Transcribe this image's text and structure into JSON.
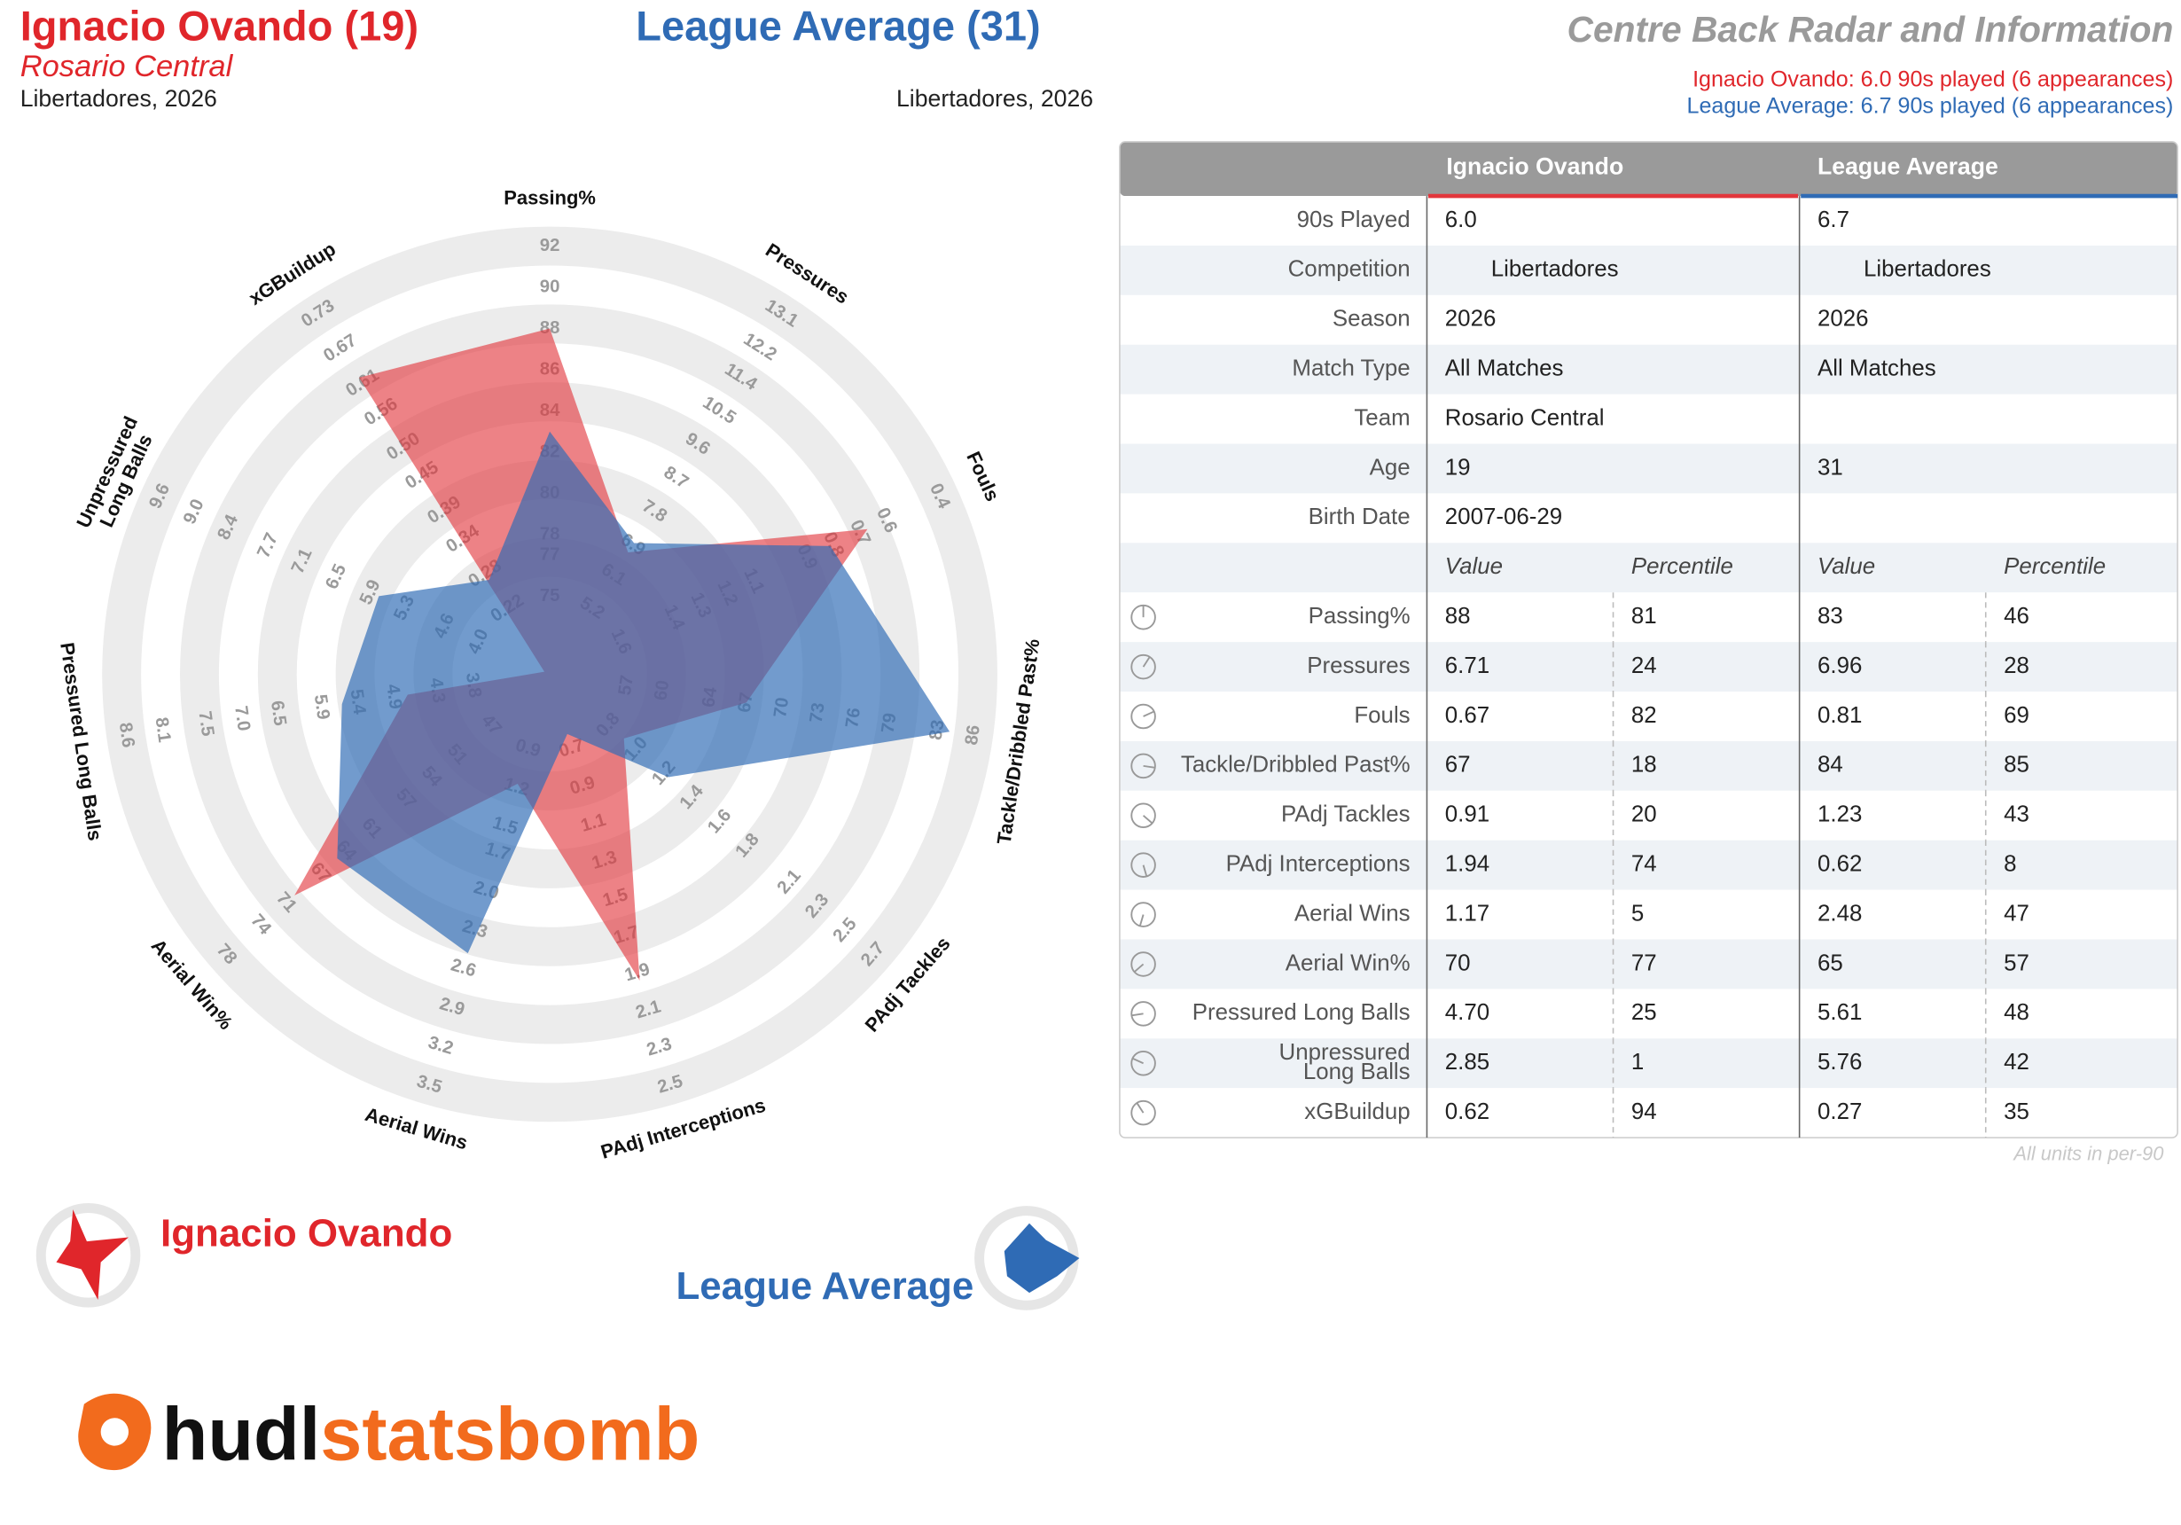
{
  "header": {
    "player_title": "Ignacio Ovando (19)",
    "team": "Rosario Central",
    "player_competition": "Libertadores, 2026",
    "league_title": "League Average (31)",
    "league_competition": "Libertadores, 2026",
    "chart_title": "Centre Back Radar and Information",
    "player_summary": "Ignacio Ovando: 6.0 90s played (6 appearances)",
    "league_summary": "League Average: 6.7 90s played (6 appearances)"
  },
  "chart_data": {
    "type": "radar",
    "axes": [
      {
        "name": "Passing%",
        "lim": [
          75,
          92
        ],
        "ticks": [
          75,
          77,
          78,
          80,
          82,
          84,
          86,
          88,
          90,
          92
        ]
      },
      {
        "name": "Pressures",
        "lim": [
          5.2,
          13.1
        ],
        "ticks": [
          5.2,
          6.1,
          6.9,
          7.8,
          8.7,
          9.6,
          10.5,
          11.4,
          12.2,
          13.1
        ]
      },
      {
        "name": "Fouls",
        "lim": [
          1.6,
          0.4
        ],
        "ticks": [
          1.6,
          1.4,
          1.3,
          1.2,
          1.1,
          0.9,
          0.8,
          0.7,
          0.6,
          0.4
        ]
      },
      {
        "name": "Tackle/Dribbled Past%",
        "lim": [
          57,
          86
        ],
        "ticks": [
          57,
          60,
          64,
          67,
          70,
          73,
          76,
          79,
          83,
          86
        ]
      },
      {
        "name": "PAdj Tackles",
        "lim": [
          0.8,
          2.7
        ],
        "ticks": [
          0.8,
          {
            "value": 1,
            "label": "1.0"
          },
          1.2,
          1.4,
          1.6,
          1.8,
          2.1,
          2.3,
          2.5,
          2.7
        ]
      },
      {
        "name": "PAdj Interceptions",
        "lim": [
          0.7,
          2.5
        ],
        "ticks": [
          0.7,
          0.9,
          1.1,
          1.3,
          1.5,
          1.7,
          1.9,
          2.1,
          2.3,
          2.5
        ]
      },
      {
        "name": "Aerial Wins",
        "lim": [
          0.9,
          3.5
        ],
        "ticks": [
          0.9,
          1.2,
          1.5,
          1.7,
          {
            "value": 2,
            "label": "2.0"
          },
          2.3,
          2.6,
          2.9,
          3.2,
          3.5
        ]
      },
      {
        "name": "Aerial Win%",
        "lim": [
          47,
          78
        ],
        "ticks": [
          47,
          51,
          54,
          57,
          61,
          64,
          67,
          71,
          74,
          78
        ]
      },
      {
        "name": "Pressured Long Balls",
        "lim": [
          3.8,
          8.6
        ],
        "ticks": [
          3.8,
          4.3,
          4.9,
          5.4,
          5.9,
          6.5,
          {
            "value": 7,
            "label": "7.0"
          },
          7.5,
          8.1,
          8.6
        ]
      },
      {
        "name": [
          "Unpressured",
          "Long Balls"
        ],
        "lim": [
          4,
          9.6
        ],
        "ticks": [
          {
            "value": 4,
            "label": "4.0"
          },
          4.6,
          5.3,
          5.9,
          6.5,
          7.1,
          7.7,
          8.4,
          {
            "value": 9,
            "label": "9.0"
          },
          9.6
        ]
      },
      {
        "name": "xGBuildup",
        "lim": [
          0.22,
          0.73
        ],
        "ticks": [
          0.22,
          0.28,
          0.34,
          0.39,
          0.45,
          {
            "value": 0.5,
            "label": "0.50"
          },
          0.56,
          0.61,
          0.67,
          0.73
        ]
      }
    ],
    "series": [
      {
        "name": "Ignacio Ovando",
        "color": "#e2363c",
        "values": [
          88,
          6.71,
          0.67,
          67,
          0.91,
          1.94,
          1.17,
          70,
          4.7,
          2.85,
          0.62
        ]
      },
      {
        "name": "League Average",
        "color": "#2f6bb5",
        "values": [
          83,
          6.96,
          0.81,
          84,
          1.23,
          0.62,
          2.48,
          65,
          5.61,
          5.76,
          0.27
        ]
      }
    ]
  },
  "table": {
    "columns": [
      "Ignacio Ovando",
      "League Average"
    ],
    "info_rows": [
      {
        "label": "90s Played",
        "values": [
          "6.0",
          "6.7"
        ]
      },
      {
        "label": "Competition",
        "values": [
          "Libertadores",
          "Libertadores"
        ]
      },
      {
        "label": "Season",
        "values": [
          "2026",
          "2026"
        ]
      },
      {
        "label": "Match Type",
        "values": [
          "All Matches",
          "All Matches"
        ]
      },
      {
        "label": "Team",
        "values": [
          "Rosario Central",
          null
        ]
      },
      {
        "label": "Age",
        "values": [
          "19",
          "31"
        ]
      },
      {
        "label": "Birth Date",
        "values": [
          "2007-06-29",
          null
        ]
      }
    ],
    "stat_header": [
      "Value",
      "Percentile",
      "Value",
      "Percentile"
    ],
    "stat_rows": [
      {
        "label": "Passing%",
        "values": [
          "88",
          "81",
          "83",
          "46"
        ],
        "percentile_colors": [
          "#a3231b",
          "#2f9e8f"
        ]
      },
      {
        "label": "Pressures",
        "values": [
          "6.71",
          "24",
          "6.96",
          "28"
        ],
        "percentile_colors": [
          "#1f5f8b",
          "#1f5f8b"
        ]
      },
      {
        "label": "Fouls",
        "values": [
          "0.67",
          "82",
          "0.81",
          "69"
        ],
        "percentile_colors": [
          "#a3231b",
          "#d0640c"
        ]
      },
      {
        "label": "Tackle/Dribbled Past%",
        "values": [
          "67",
          "18",
          "84",
          "85"
        ],
        "percentile_colors": [
          "#173f6e",
          "#9b1c1c"
        ]
      },
      {
        "label": "PAdj Tackles",
        "values": [
          "0.91",
          "20",
          "1.23",
          "43"
        ],
        "percentile_colors": [
          "#173f6e",
          "#2f9eaa"
        ]
      },
      {
        "label": "PAdj Interceptions",
        "values": [
          "1.94",
          "74",
          "0.62",
          "8"
        ],
        "percentile_colors": [
          "#b5520e",
          "#1a2a5e"
        ]
      },
      {
        "label": "Aerial Wins",
        "values": [
          "1.17",
          "5",
          "2.48",
          "47"
        ],
        "percentile_colors": [
          "#1a2a5e",
          "#3ea88a"
        ]
      },
      {
        "label": "Aerial Win%",
        "values": [
          "70",
          "77",
          "65",
          "57"
        ],
        "percentile_colors": [
          "#b83a15",
          "#d9a520"
        ]
      },
      {
        "label": "Pressured Long Balls",
        "values": [
          "4.70",
          "25",
          "5.61",
          "48"
        ],
        "percentile_colors": [
          "#1f5f8b",
          "#3ea88a"
        ]
      },
      {
        "label": [
          "Unpressured",
          "Long Balls"
        ],
        "values": [
          "2.85",
          "1",
          "5.76",
          "42"
        ],
        "percentile_colors": [
          "#1a2a5e",
          "#2f9eaa"
        ]
      },
      {
        "label": "xGBuildup",
        "values": [
          "0.62",
          "94",
          "0.27",
          "35"
        ],
        "percentile_colors": [
          "#8b1a1a",
          "#2f8aa8"
        ]
      }
    ],
    "footnote": "All units in per-90"
  },
  "logo": {
    "hudl": "hudl",
    "statsbomb": "statsbomb"
  }
}
